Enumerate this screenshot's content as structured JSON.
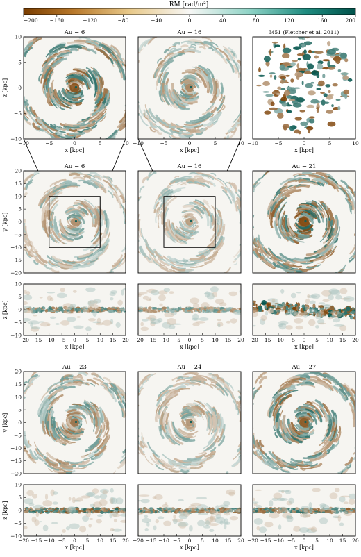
{
  "colorbar": {
    "label": "RM [rad/m²]",
    "min": -200,
    "max": 200,
    "ticks": [
      -200,
      -160,
      -120,
      -80,
      -40,
      0,
      40,
      80,
      120,
      160,
      200
    ],
    "colors": {
      "negative": "#7a3d00",
      "mid": "#f7f7f5",
      "positive": "#00524a"
    }
  },
  "panels": [
    {
      "key": "zoom6",
      "title": "Au − 6",
      "kind": "zoom",
      "xlabel": "x [kpc]",
      "ylabel": "z [kpc]",
      "xticks": [
        -10,
        -5,
        0,
        5,
        10
      ],
      "yticks": [
        -10,
        -5,
        0,
        5,
        10
      ],
      "style": "spiral",
      "intensity": 0.95,
      "arms": 2,
      "seed": 11
    },
    {
      "key": "zoom16",
      "title": "Au − 16",
      "kind": "zoom",
      "xlabel": "x [kpc]",
      "ylabel": "",
      "xticks": [
        -10,
        -5,
        0,
        5,
        10
      ],
      "yticks": [],
      "style": "spiral",
      "intensity": 0.6,
      "arms": 2,
      "seed": 23
    },
    {
      "key": "m51",
      "title": "M51 (Fletcher et al. 2011)",
      "kind": "obs",
      "xlabel": "x [kpc]",
      "ylabel": "",
      "xticks": [
        -10,
        -5,
        0,
        5,
        10
      ],
      "yticks": [],
      "style": "patchy",
      "intensity": 0.8,
      "arms": 2,
      "seed": 37
    },
    {
      "key": "face6",
      "title": "Au − 6",
      "kind": "face",
      "xlabel": "",
      "ylabel": "y [kpc]",
      "xticks": [],
      "yticks": [
        -20,
        -15,
        -10,
        -5,
        0,
        5,
        10,
        15,
        20
      ],
      "style": "spiral",
      "intensity": 0.55,
      "arms": 2,
      "seed": 41
    },
    {
      "key": "face16",
      "title": "Au − 16",
      "kind": "face",
      "xlabel": "",
      "ylabel": "",
      "xticks": [],
      "yticks": [],
      "style": "spiral",
      "intensity": 0.45,
      "arms": 2,
      "seed": 53
    },
    {
      "key": "face21",
      "title": "Au − 21",
      "kind": "face",
      "xlabel": "",
      "ylabel": "",
      "xticks": [],
      "yticks": [],
      "style": "spiral",
      "intensity": 1.0,
      "arms": 2,
      "seed": 67
    },
    {
      "key": "edge6",
      "title": "",
      "kind": "edge",
      "xlabel": "x [kpc]",
      "ylabel": "z [kpc]",
      "xticks": [
        -20,
        -15,
        -10,
        -5,
        0,
        5,
        10,
        15,
        20
      ],
      "yticks": [
        -10,
        -5,
        0,
        5,
        10
      ],
      "style": "edge",
      "intensity": 0.7,
      "arms": 0,
      "seed": 71
    },
    {
      "key": "edge16",
      "title": "",
      "kind": "edge",
      "xlabel": "x [kpc]",
      "ylabel": "",
      "xticks": [
        -20,
        -15,
        -10,
        -5,
        0,
        5,
        10,
        15,
        20
      ],
      "yticks": [],
      "style": "edge",
      "intensity": 0.55,
      "arms": 0,
      "seed": 83
    },
    {
      "key": "edge21",
      "title": "",
      "kind": "edge",
      "xlabel": "x [kpc]",
      "ylabel": "",
      "xticks": [
        -20,
        -15,
        -10,
        -5,
        0,
        5,
        10,
        15,
        20
      ],
      "yticks": [],
      "style": "edge-thick",
      "intensity": 1.0,
      "arms": 0,
      "seed": 97
    },
    {
      "key": "face23",
      "title": "Au − 23",
      "kind": "face",
      "xlabel": "",
      "ylabel": "y [kpc]",
      "xticks": [],
      "yticks": [
        -20,
        -15,
        -10,
        -5,
        0,
        5,
        10,
        15,
        20
      ],
      "style": "spiral",
      "intensity": 0.7,
      "arms": 2,
      "seed": 101
    },
    {
      "key": "face24",
      "title": "Au − 24",
      "kind": "face",
      "xlabel": "",
      "ylabel": "",
      "xticks": [],
      "yticks": [],
      "style": "spiral",
      "intensity": 0.5,
      "arms": 2,
      "seed": 113
    },
    {
      "key": "face27",
      "title": "Au − 27",
      "kind": "face",
      "xlabel": "",
      "ylabel": "",
      "xticks": [],
      "yticks": [],
      "style": "spiral",
      "intensity": 0.9,
      "arms": 2,
      "seed": 127
    },
    {
      "key": "edge23",
      "title": "",
      "kind": "edge",
      "xlabel": "x [kpc]",
      "ylabel": "z [kpc]",
      "xticks": [
        -20,
        -15,
        -10,
        -5,
        0,
        5,
        10,
        15,
        20
      ],
      "yticks": [
        -10,
        -5,
        0,
        5,
        10
      ],
      "style": "edge",
      "intensity": 0.85,
      "arms": 0,
      "seed": 131
    },
    {
      "key": "edge24",
      "title": "",
      "kind": "edge",
      "xlabel": "x [kpc]",
      "ylabel": "",
      "xticks": [
        -20,
        -15,
        -10,
        -5,
        0,
        5,
        10,
        15,
        20
      ],
      "yticks": [],
      "style": "edge",
      "intensity": 0.75,
      "arms": 0,
      "seed": 149
    },
    {
      "key": "edge27",
      "title": "",
      "kind": "edge",
      "xlabel": "x [kpc]",
      "ylabel": "",
      "xticks": [
        -20,
        -15,
        -10,
        -5,
        0,
        5,
        10,
        15,
        20
      ],
      "yticks": [],
      "style": "edge",
      "intensity": 0.8,
      "arms": 0,
      "seed": 157
    }
  ],
  "chart_data": {
    "type": "heatmap",
    "quantity": "RM [rad/m²]",
    "color_range": [
      -200,
      200
    ],
    "panels": [
      {
        "title": "Au − 6",
        "projection": "face-on zoom",
        "xlim": [
          -10,
          10
        ],
        "ylim": [
          -10,
          10
        ],
        "xlabel": "x [kpc]",
        "ylabel": "z [kpc]"
      },
      {
        "title": "Au − 16",
        "projection": "face-on zoom",
        "xlim": [
          -10,
          10
        ],
        "ylim": [
          -10,
          10
        ],
        "xlabel": "x [kpc]"
      },
      {
        "title": "M51 (Fletcher et al. 2011)",
        "projection": "observation",
        "xlim": [
          -10,
          10
        ],
        "ylim": [
          -10,
          10
        ],
        "xlabel": "x [kpc]"
      },
      {
        "title": "Au − 6",
        "projection": "face-on",
        "xlim": [
          -20,
          20
        ],
        "ylim": [
          -20,
          20
        ],
        "ylabel": "y [kpc]",
        "inset_box": [
          -10,
          10
        ]
      },
      {
        "title": "Au − 16",
        "projection": "face-on",
        "xlim": [
          -20,
          20
        ],
        "ylim": [
          -20,
          20
        ],
        "inset_box": [
          -10,
          10
        ]
      },
      {
        "title": "Au − 21",
        "projection": "face-on",
        "xlim": [
          -20,
          20
        ],
        "ylim": [
          -20,
          20
        ]
      },
      {
        "title": "Au − 6",
        "projection": "edge-on",
        "xlim": [
          -20,
          20
        ],
        "ylim": [
          -10,
          10
        ],
        "xlabel": "x [kpc]",
        "ylabel": "z [kpc]"
      },
      {
        "title": "Au − 16",
        "projection": "edge-on",
        "xlim": [
          -20,
          20
        ],
        "ylim": [
          -10,
          10
        ],
        "xlabel": "x [kpc]"
      },
      {
        "title": "Au − 21",
        "projection": "edge-on",
        "xlim": [
          -20,
          20
        ],
        "ylim": [
          -10,
          10
        ],
        "xlabel": "x [kpc]"
      },
      {
        "title": "Au − 23",
        "projection": "face-on",
        "xlim": [
          -20,
          20
        ],
        "ylim": [
          -20,
          20
        ],
        "ylabel": "y [kpc]"
      },
      {
        "title": "Au − 24",
        "projection": "face-on",
        "xlim": [
          -20,
          20
        ],
        "ylim": [
          -20,
          20
        ]
      },
      {
        "title": "Au − 27",
        "projection": "face-on",
        "xlim": [
          -20,
          20
        ],
        "ylim": [
          -20,
          20
        ]
      },
      {
        "title": "Au − 23",
        "projection": "edge-on",
        "xlim": [
          -20,
          20
        ],
        "ylim": [
          -10,
          10
        ],
        "xlabel": "x [kpc]",
        "ylabel": "z [kpc]"
      },
      {
        "title": "Au − 24",
        "projection": "edge-on",
        "xlim": [
          -20,
          20
        ],
        "ylim": [
          -10,
          10
        ],
        "xlabel": "x [kpc]"
      },
      {
        "title": "Au − 27",
        "projection": "edge-on",
        "xlim": [
          -20,
          20
        ],
        "ylim": [
          -10,
          10
        ],
        "xlabel": "x [kpc]"
      }
    ]
  }
}
